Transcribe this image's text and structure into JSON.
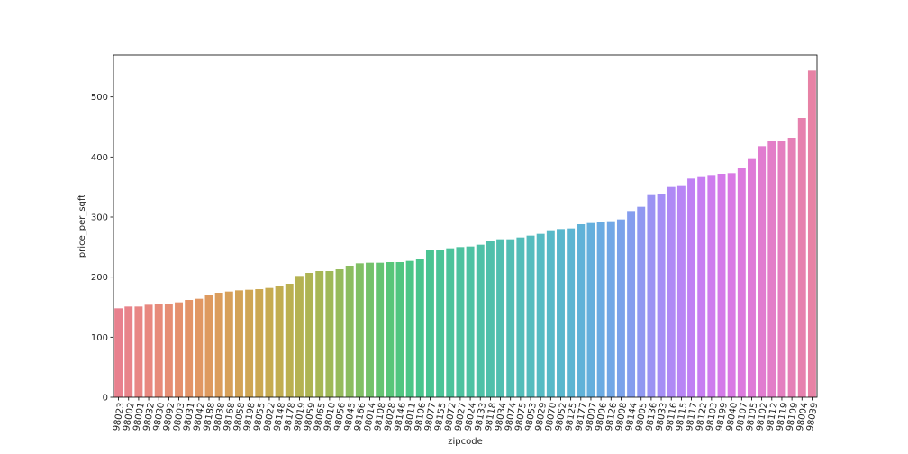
{
  "chart_data": {
    "type": "bar",
    "title": "",
    "xlabel": "zipcode",
    "ylabel": "price_per_sqft",
    "ylim": [
      0,
      570
    ],
    "yticks": [
      0,
      100,
      200,
      300,
      400,
      500
    ],
    "grid": false,
    "legend": "none",
    "categories": [
      "98023",
      "98002",
      "98001",
      "98032",
      "98030",
      "98092",
      "98003",
      "98031",
      "98042",
      "98188",
      "98038",
      "98168",
      "98058",
      "98198",
      "98055",
      "98022",
      "98148",
      "98178",
      "98019",
      "98059",
      "98065",
      "98010",
      "98056",
      "98045",
      "98166",
      "98014",
      "98108",
      "98028",
      "98146",
      "98011",
      "98106",
      "98077",
      "98155",
      "98072",
      "98027",
      "98024",
      "98133",
      "98118",
      "98034",
      "98074",
      "98075",
      "98053",
      "98029",
      "98070",
      "98052",
      "98125",
      "98177",
      "98007",
      "98006",
      "98126",
      "98008",
      "98144",
      "98005",
      "98136",
      "98033",
      "98116",
      "98115",
      "98117",
      "98122",
      "98103",
      "98199",
      "98040",
      "98107",
      "98105",
      "98102",
      "98112",
      "98119",
      "98109",
      "98004",
      "98039"
    ],
    "values": [
      148,
      151,
      151,
      154,
      155,
      156,
      158,
      162,
      164,
      170,
      174,
      176,
      178,
      179,
      180,
      182,
      186,
      189,
      202,
      207,
      210,
      210,
      213,
      219,
      223,
      224,
      224,
      225,
      225,
      227,
      231,
      245,
      245,
      248,
      250,
      251,
      254,
      261,
      263,
      263,
      266,
      269,
      272,
      278,
      280,
      281,
      288,
      290,
      292,
      293,
      296,
      310,
      317,
      338,
      339,
      350,
      353,
      364,
      368,
      370,
      372,
      373,
      382,
      398,
      418,
      427,
      427,
      432,
      465,
      544
    ],
    "colors": [
      "#e8808e",
      "#e8838a",
      "#e88685",
      "#e88880",
      "#e78b7a",
      "#e68e74",
      "#e5916e",
      "#e39468",
      "#e19763",
      "#de9a5f",
      "#db9d5c",
      "#d7a059",
      "#d3a356",
      "#cfa654",
      "#cba852",
      "#c6ab51",
      "#c1ad51",
      "#bbb051",
      "#b5b252",
      "#aeb453",
      "#a7b755",
      "#9fb958",
      "#96bb5c",
      "#8cbd60",
      "#81c065",
      "#74c26b",
      "#65c472",
      "#58c679",
      "#50c680",
      "#4cc687",
      "#4ac58d",
      "#4ac492",
      "#4bc497",
      "#4cc39b",
      "#4dc29f",
      "#4ec2a3",
      "#4fc1a7",
      "#50c0ab",
      "#51bfb0",
      "#52beb4",
      "#53bdb9",
      "#55bcbe",
      "#56bbc3",
      "#58b9c8",
      "#5ab7cd",
      "#5db5d2",
      "#60b2d8",
      "#65afdd",
      "#6babe2",
      "#72a7e6",
      "#7ba2ea",
      "#859dee",
      "#9098f1",
      "#9b93f3",
      "#a58ef5",
      "#af89f5",
      "#b885f5",
      "#c081f4",
      "#c77ef2",
      "#ce7cee",
      "#d47ae9",
      "#d979e4",
      "#dc7ade",
      "#df7bd7",
      "#e17cd0",
      "#e37ec8",
      "#e47fc0",
      "#e580b7",
      "#e681ae",
      "#e782a5"
    ]
  }
}
